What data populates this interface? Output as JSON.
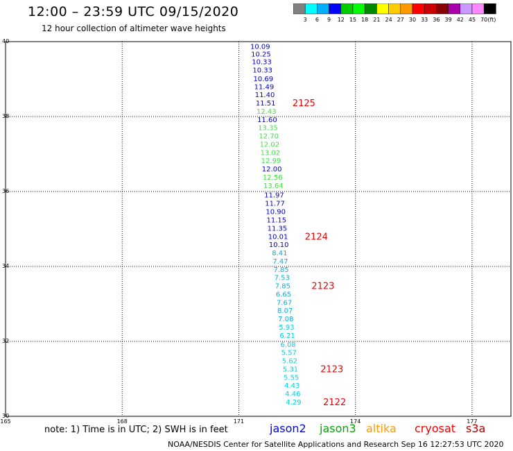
{
  "header": {
    "title": "12:00 – 23:59 UTC 09/15/2020",
    "subtitle": "12 hour collection of altimeter wave heights"
  },
  "color_scale": {
    "colors": [
      "#808080",
      "#00ffff",
      "#00b0ff",
      "#0000ff",
      "#00cc00",
      "#00ff00",
      "#008800",
      "#ffff00",
      "#ffcc00",
      "#ff9900",
      "#ff0000",
      "#cc0000",
      "#880000",
      "#aa00aa",
      "#cc99ff",
      "#ff88ff",
      "#000000"
    ],
    "labels": [
      "3",
      "6",
      "9",
      "12",
      "15",
      "18",
      "21",
      "24",
      "27",
      "30",
      "33",
      "36",
      "39",
      "42",
      "45",
      "70",
      "(ft)"
    ]
  },
  "chart_data": {
    "type": "scatter",
    "title": "12:00 – 23:59 UTC 09/15/2020",
    "subtitle": "12 hour collection of altimeter wave heights",
    "xlim": [
      165,
      178
    ],
    "ylim": [
      30,
      40
    ],
    "x_ticks": [
      "165",
      "168",
      "171",
      "174",
      "177"
    ],
    "y_ticks": [
      "40",
      "38",
      "36",
      "34",
      "32",
      "30"
    ],
    "grid": true,
    "units": "ft",
    "points": [
      {
        "x": 171.55,
        "y": 39.88,
        "label": "10.09",
        "color": "#0000cc"
      },
      {
        "x": 171.57,
        "y": 39.68,
        "label": "10.25",
        "color": "#0000cc"
      },
      {
        "x": 171.59,
        "y": 39.47,
        "label": "10.33",
        "color": "#0000cc"
      },
      {
        "x": 171.61,
        "y": 39.25,
        "label": "10.33",
        "color": "#0000cc"
      },
      {
        "x": 171.63,
        "y": 39.02,
        "label": "10.69",
        "color": "#0000cc"
      },
      {
        "x": 171.65,
        "y": 38.81,
        "label": "11.49",
        "color": "#0000cc"
      },
      {
        "x": 171.67,
        "y": 38.59,
        "label": "11.40",
        "color": "#0000cc"
      },
      {
        "x": 171.69,
        "y": 38.37,
        "label": "11.51",
        "color": "#0000cc"
      },
      {
        "x": 171.71,
        "y": 38.15,
        "label": "12.43",
        "color": "#44dd44"
      },
      {
        "x": 171.73,
        "y": 37.93,
        "label": "11.60",
        "color": "#0000cc"
      },
      {
        "x": 171.75,
        "y": 37.71,
        "label": "13.35",
        "color": "#44dd44"
      },
      {
        "x": 171.77,
        "y": 37.49,
        "label": "12.70",
        "color": "#44dd44"
      },
      {
        "x": 171.79,
        "y": 37.27,
        "label": "12.02",
        "color": "#44dd44"
      },
      {
        "x": 171.81,
        "y": 37.05,
        "label": "13.02",
        "color": "#44dd44"
      },
      {
        "x": 171.83,
        "y": 36.83,
        "label": "12.99",
        "color": "#44dd44"
      },
      {
        "x": 171.85,
        "y": 36.61,
        "label": "12.00",
        "color": "#0000cc"
      },
      {
        "x": 171.87,
        "y": 36.39,
        "label": "12.56",
        "color": "#44dd44"
      },
      {
        "x": 171.89,
        "y": 36.17,
        "label": "13.64",
        "color": "#44dd44"
      },
      {
        "x": 171.91,
        "y": 35.92,
        "label": "11.97",
        "color": "#0000cc"
      },
      {
        "x": 171.93,
        "y": 35.69,
        "label": "11.77",
        "color": "#0000cc"
      },
      {
        "x": 171.95,
        "y": 35.47,
        "label": "10.90",
        "color": "#0000cc"
      },
      {
        "x": 171.97,
        "y": 35.25,
        "label": "11.15",
        "color": "#0000cc"
      },
      {
        "x": 171.99,
        "y": 35.03,
        "label": "11.35",
        "color": "#0000cc"
      },
      {
        "x": 172.01,
        "y": 34.81,
        "label": "10.01",
        "color": "#0000cc"
      },
      {
        "x": 172.03,
        "y": 34.59,
        "label": "10.10",
        "color": "#0000cc"
      },
      {
        "x": 172.05,
        "y": 34.37,
        "label": "8.41",
        "color": "#00b0dd"
      },
      {
        "x": 172.07,
        "y": 34.15,
        "label": "7.47",
        "color": "#00b0dd"
      },
      {
        "x": 172.09,
        "y": 33.93,
        "label": "7.85",
        "color": "#00b0dd"
      },
      {
        "x": 172.11,
        "y": 33.71,
        "label": "7.53",
        "color": "#00b0dd"
      },
      {
        "x": 172.13,
        "y": 33.49,
        "label": "7.85",
        "color": "#00b0dd"
      },
      {
        "x": 172.15,
        "y": 33.27,
        "label": "6.65",
        "color": "#00b0dd"
      },
      {
        "x": 172.17,
        "y": 33.05,
        "label": "7.67",
        "color": "#00b0dd"
      },
      {
        "x": 172.19,
        "y": 32.83,
        "label": "8.07",
        "color": "#00b0dd"
      },
      {
        "x": 172.21,
        "y": 32.61,
        "label": "7.08",
        "color": "#00b0dd"
      },
      {
        "x": 172.23,
        "y": 32.39,
        "label": "5.93",
        "color": "#00d0e0"
      },
      {
        "x": 172.25,
        "y": 32.17,
        "label": "6.21",
        "color": "#00d0e0"
      },
      {
        "x": 172.27,
        "y": 31.93,
        "label": "6.08",
        "color": "#00d0e0"
      },
      {
        "x": 172.29,
        "y": 31.71,
        "label": "5.57",
        "color": "#00d0e0"
      },
      {
        "x": 172.31,
        "y": 31.49,
        "label": "5.62",
        "color": "#00d0e0"
      },
      {
        "x": 172.33,
        "y": 31.27,
        "label": "5.31",
        "color": "#00d0e0"
      },
      {
        "x": 172.35,
        "y": 31.05,
        "label": "5.55",
        "color": "#00d0e0"
      },
      {
        "x": 172.37,
        "y": 30.83,
        "label": "4.43",
        "color": "#00d0e0"
      },
      {
        "x": 172.39,
        "y": 30.61,
        "label": "4.46",
        "color": "#00d0e0"
      },
      {
        "x": 172.41,
        "y": 30.39,
        "label": "4.29",
        "color": "#00d0e0"
      }
    ],
    "annotations": [
      {
        "text": "2125",
        "x": 172.38,
        "y": 38.37,
        "color": "#ee0000"
      },
      {
        "text": "2124",
        "x": 172.7,
        "y": 34.81,
        "color": "#ee0000"
      },
      {
        "text": "2123",
        "x": 172.87,
        "y": 33.49,
        "color": "#ee0000"
      },
      {
        "text": "2123",
        "x": 173.1,
        "y": 31.27,
        "color": "#ee0000"
      },
      {
        "text": "2122",
        "x": 173.17,
        "y": 30.39,
        "color": "#ee0000"
      }
    ]
  },
  "note": "note:  1) Time is in UTC;  2) SWH is in feet",
  "legend": [
    {
      "name": "jason2",
      "color": "#0000ee"
    },
    {
      "name": "jason3",
      "color": "#00aa00"
    },
    {
      "name": "altika",
      "color": "#ff9900"
    },
    {
      "name": "cryosat",
      "color": "#ee0000"
    },
    {
      "name": "s3a",
      "color": "#aa0000"
    }
  ],
  "footer": "NOAA/NESDIS Center for Satellite Applications and Research    Sep 16 12:27:53 UTC 2020"
}
